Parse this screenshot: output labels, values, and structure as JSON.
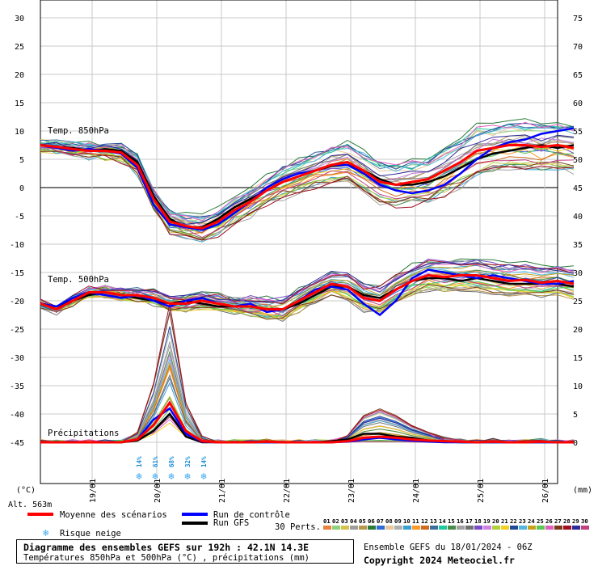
{
  "chart_data": {
    "type": "line",
    "title": "Diagramme des ensembles GEFS sur 192h : 42.1N 14.3E",
    "subtitle": "Températures 850hPa et 500hPa (°C) , précipitations (mm)",
    "run_info": "Ensemble GEFS du 18/01/2024 - 06Z",
    "copyright": "Copyright 2024 Meteociel.fr",
    "altitude_label": "Alt. 563m",
    "left_axis_unit": "(°C)",
    "right_axis_unit": "(mm)",
    "left_ticks": [
      30,
      25,
      20,
      15,
      10,
      5,
      0,
      -5,
      -10,
      -15,
      -20,
      -25,
      -30,
      -35,
      -40,
      -45
    ],
    "right_ticks": [
      75,
      70,
      65,
      60,
      55,
      50,
      45,
      40,
      35,
      30,
      25,
      20,
      15,
      10,
      5,
      0
    ],
    "ylim": [
      -45,
      30
    ],
    "x_labels": [
      "19/01",
      "20/01",
      "21/01",
      "22/01",
      "23/01",
      "24/01",
      "25/01",
      "26/01"
    ],
    "x_times": [
      18,
      24,
      30,
      36,
      42,
      48,
      54,
      60,
      66,
      72,
      78,
      84,
      90,
      96,
      102,
      108,
      114,
      120,
      126,
      132,
      138,
      144,
      150,
      156,
      162,
      168,
      174,
      180,
      186,
      192,
      198,
      204,
      210,
      216
    ],
    "section_labels": {
      "t850": "Temp. 850hPa",
      "t500": "Temp. 500hPa",
      "precip": "Précipitations"
    },
    "series": [
      {
        "name": "Moyenne des scénarios",
        "color": "#ff0000",
        "t850": [
          7.5,
          7.2,
          6.8,
          6.5,
          6.5,
          6.2,
          4.0,
          -2.0,
          -6.0,
          -6.8,
          -7.2,
          -6.0,
          -4.0,
          -2.5,
          -0.5,
          1.0,
          2.0,
          3.0,
          4.0,
          4.5,
          3.0,
          1.0,
          0.5,
          1.0,
          1.5,
          3.0,
          4.5,
          6.5,
          7.0,
          7.5,
          7.5,
          7.2,
          7.5,
          7.0
        ],
        "t500": [
          -20.5,
          -21.5,
          -20.0,
          -18.5,
          -18.5,
          -19.0,
          -19.0,
          -19.5,
          -20.5,
          -20.5,
          -20.0,
          -20.5,
          -21.0,
          -21.0,
          -21.5,
          -21.5,
          -20.0,
          -18.5,
          -17.0,
          -17.5,
          -19.5,
          -20.0,
          -18.0,
          -16.5,
          -15.5,
          -15.8,
          -15.5,
          -15.5,
          -16.0,
          -16.5,
          -16.3,
          -16.8,
          -16.5,
          -17.0
        ],
        "precip": [
          0,
          0,
          0,
          0,
          0,
          0,
          0.5,
          3.0,
          7.0,
          2.0,
          0.2,
          0,
          0,
          0,
          0.1,
          0,
          0,
          0,
          0,
          0.2,
          0.8,
          1.0,
          0.8,
          0.5,
          0.3,
          0.2,
          0.1,
          0,
          0.1,
          0,
          0,
          0.1,
          0,
          0
        ]
      },
      {
        "name": "Run de contrôle",
        "color": "#0000ff",
        "t850": [
          7.5,
          7.0,
          6.5,
          6.8,
          6.5,
          6.0,
          3.5,
          -3.0,
          -6.5,
          -7.0,
          -7.5,
          -6.5,
          -4.5,
          -2.5,
          0,
          1.5,
          2.5,
          3.0,
          4.0,
          4.0,
          2.5,
          0.5,
          -0.5,
          -1.0,
          -0.5,
          0.5,
          2.5,
          5.0,
          7.0,
          8.0,
          8.5,
          9.5,
          10.0,
          10.5
        ],
        "t500": [
          -20.5,
          -21.0,
          -19.5,
          -18.5,
          -19.0,
          -19.5,
          -19.0,
          -20.0,
          -21.0,
          -20.0,
          -19.5,
          -20.5,
          -21.0,
          -20.5,
          -22.0,
          -21.5,
          -20.0,
          -18.0,
          -17.5,
          -18.0,
          -20.5,
          -22.5,
          -20.0,
          -16.0,
          -14.5,
          -15.0,
          -15.5,
          -16.0,
          -15.5,
          -16.0,
          -16.5,
          -17.0,
          -17.0,
          -16.5
        ],
        "precip": [
          0,
          0,
          0,
          0,
          0,
          0,
          0.5,
          4.0,
          6.0,
          1.5,
          0.1,
          0,
          0,
          0,
          0,
          0,
          0,
          0,
          0,
          0.1,
          0.5,
          0.8,
          0.5,
          0.3,
          0.1,
          0,
          0,
          0,
          0,
          0,
          0,
          0,
          0,
          0
        ]
      },
      {
        "name": "Run GFS",
        "color": "#000000",
        "t850": [
          7.5,
          7.2,
          7.0,
          6.5,
          6.8,
          6.5,
          4.5,
          -1.5,
          -5.5,
          -7.0,
          -7.0,
          -5.5,
          -3.5,
          -2.0,
          -0.5,
          1.0,
          2.0,
          3.0,
          3.8,
          4.0,
          3.0,
          1.5,
          0.5,
          0.5,
          1.0,
          2.0,
          3.5,
          5.0,
          6.0,
          6.5,
          7.0,
          7.5,
          7.0,
          7.5
        ],
        "t500": [
          -20.5,
          -21.0,
          -20.0,
          -19.0,
          -18.5,
          -19.0,
          -19.5,
          -20.0,
          -20.5,
          -20.0,
          -20.5,
          -21.0,
          -21.0,
          -21.0,
          -21.5,
          -21.5,
          -20.5,
          -19.0,
          -17.5,
          -17.5,
          -19.0,
          -19.5,
          -18.0,
          -16.5,
          -16.0,
          -16.0,
          -16.5,
          -16.0,
          -16.5,
          -17.0,
          -17.0,
          -17.0,
          -17.0,
          -17.5
        ],
        "precip": [
          0,
          0,
          0,
          0,
          0,
          0,
          0.3,
          2.0,
          5.0,
          1.0,
          0,
          0,
          0,
          0,
          0,
          0,
          0,
          0,
          0.2,
          0.5,
          1.5,
          1.5,
          1.0,
          0.8,
          0.3,
          0.1,
          0,
          0,
          0,
          0,
          0,
          0,
          0,
          0
        ]
      }
    ],
    "perturbations_label": "30 Perts.",
    "perturbations": [
      {
        "id": "01",
        "color": "#e8823c"
      },
      {
        "id": "02",
        "color": "#8fd07a"
      },
      {
        "id": "03",
        "color": "#d4c24a"
      },
      {
        "id": "04",
        "color": "#9e9e9e"
      },
      {
        "id": "05",
        "color": "#b8964a"
      },
      {
        "id": "06",
        "color": "#2a7a3a"
      },
      {
        "id": "07",
        "color": "#2f6bd8"
      },
      {
        "id": "08",
        "color": "#e8c89a"
      },
      {
        "id": "09",
        "color": "#b0b0b0"
      },
      {
        "id": "10",
        "color": "#3aa0d0"
      },
      {
        "id": "11",
        "color": "#ff9a2a"
      },
      {
        "id": "12",
        "color": "#d06a20"
      },
      {
        "id": "13",
        "color": "#3c6e9e"
      },
      {
        "id": "14",
        "color": "#20c8a0"
      },
      {
        "id": "15",
        "color": "#4a8a4a"
      },
      {
        "id": "16",
        "color": "#a0a0a0"
      },
      {
        "id": "17",
        "color": "#707070"
      },
      {
        "id": "18",
        "color": "#7a4ac8"
      },
      {
        "id": "19",
        "color": "#d080e0"
      },
      {
        "id": "20",
        "color": "#b0d040"
      },
      {
        "id": "21",
        "color": "#f0d020"
      },
      {
        "id": "22",
        "color": "#204a9a"
      },
      {
        "id": "23",
        "color": "#50b8e0"
      },
      {
        "id": "24",
        "color": "#c8a020"
      },
      {
        "id": "25",
        "color": "#5ac850"
      },
      {
        "id": "26",
        "color": "#e060c0"
      },
      {
        "id": "27",
        "color": "#7a3a1a"
      },
      {
        "id": "28",
        "color": "#a01020"
      },
      {
        "id": "29",
        "color": "#2a2a9a"
      },
      {
        "id": "30",
        "color": "#c04080"
      }
    ],
    "snow_risk": [
      {
        "time": 54,
        "label": "14%"
      },
      {
        "time": 60,
        "label": "61%"
      },
      {
        "time": 66,
        "label": "68%"
      },
      {
        "time": 72,
        "label": "32%"
      },
      {
        "time": 78,
        "label": "14%"
      }
    ],
    "legend": {
      "mean": "Moyenne des scénarios",
      "control": "Run de contrôle",
      "gfs": "Run GFS",
      "snow": "Risque neige"
    },
    "grid": true
  }
}
